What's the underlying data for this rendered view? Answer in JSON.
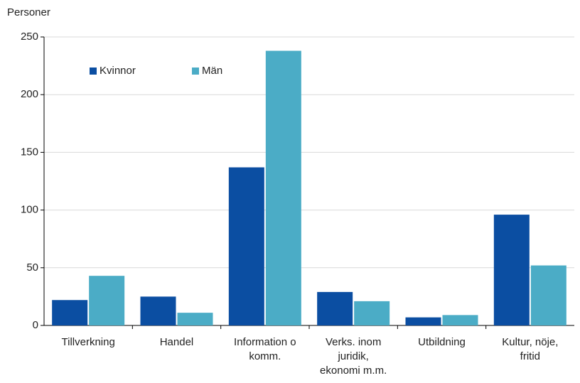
{
  "chart_data": {
    "type": "bar",
    "y_label": "Personer",
    "categories": [
      "Tillverkning",
      "Handel",
      "Information o komm.",
      "Verks. inom juridik, ekonomi m.m.",
      "Utbildning",
      "Kultur, nöje, fritid"
    ],
    "series": [
      {
        "name": "Kvinnor",
        "color": "#0b4ea2",
        "values": [
          22,
          25,
          137,
          29,
          7,
          96
        ]
      },
      {
        "name": "Män",
        "color": "#4bacc6",
        "values": [
          43,
          11,
          238,
          21,
          9,
          52
        ]
      }
    ],
    "ylim": [
      0,
      250
    ],
    "yticks": [
      0,
      50,
      100,
      150,
      200,
      250
    ],
    "grid": true,
    "legend": "upper left"
  }
}
